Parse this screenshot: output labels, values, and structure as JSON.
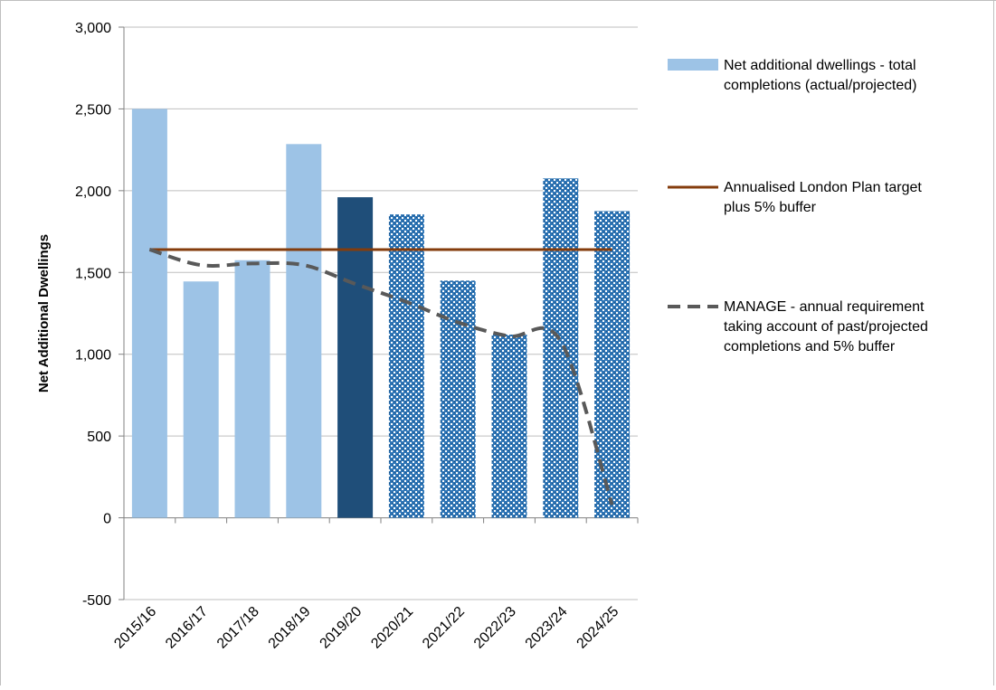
{
  "chart_data": {
    "type": "bar",
    "categories": [
      "2015/16",
      "2016/17",
      "2017/18",
      "2018/19",
      "2019/20",
      "2020/21",
      "2021/22",
      "2022/23",
      "2023/24",
      "2024/25"
    ],
    "series": [
      {
        "name": "Net additional dwellings - total completions (actual/projected)",
        "type": "bar",
        "values": [
          2500,
          1445,
          1575,
          2285,
          1960,
          1855,
          1450,
          1120,
          2075,
          1875
        ],
        "point_styles": [
          "actual",
          "actual",
          "actual",
          "actual",
          "current",
          "projected",
          "projected",
          "projected",
          "projected",
          "projected"
        ],
        "colors": {
          "actual": "#9dc3e6",
          "current": "#1f4e79",
          "projected": "#2e75b6"
        }
      },
      {
        "name": "Annualised London Plan target plus 5% buffer",
        "type": "line",
        "values": [
          1640,
          1640,
          1640,
          1640,
          1640,
          1640,
          1640,
          1640,
          1640,
          1640
        ],
        "color": "#843c0c"
      },
      {
        "name": "MANAGE - annual requirement taking account of past/projected completions and 5% buffer",
        "type": "line-dashed",
        "values": [
          1640,
          1545,
          1555,
          1545,
          1430,
          1320,
          1195,
          1110,
          1080,
          80
        ],
        "color": "#595959"
      }
    ],
    "xlabel": "",
    "ylabel": "Net Additional Dwellings",
    "ylim": [
      -500,
      3000
    ],
    "yticks": [
      -500,
      0,
      500,
      1000,
      1500,
      2000,
      2500,
      3000
    ],
    "ytick_labels": [
      "-500",
      "0",
      "500",
      "1,000",
      "1,500",
      "2,000",
      "2,500",
      "3,000"
    ],
    "grid": true,
    "legend_position": "right",
    "legend": [
      {
        "lines": [
          "Net additional dwellings - total",
          "completions (actual/projected)"
        ]
      },
      {
        "lines": [
          "Annualised London Plan target",
          "plus 5% buffer"
        ]
      },
      {
        "lines": [
          "MANAGE - annual requirement",
          "taking account of past/projected",
          "completions and 5% buffer"
        ]
      }
    ]
  }
}
